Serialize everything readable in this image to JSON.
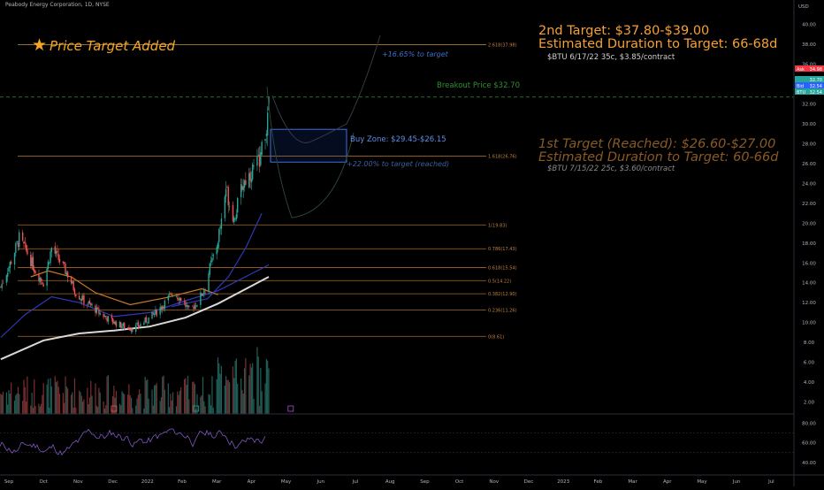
{
  "header": {
    "title": "Peabody Energy Corporation, 1D, NYSE"
  },
  "badge": {
    "icon": "star-icon",
    "text": "Price Target Added",
    "color": "#f5a623"
  },
  "notes": {
    "target2_title": "2nd Target: $37.80-$39.00",
    "target2_duration": "Estimated Duration to Target: 66-68d",
    "target2_contract": "$BTU 6/17/22 35c, $3.85/contract",
    "target1_title": "1st Target (Reached): $26.60-$27.00",
    "target1_duration": "Estimated Duration to Target: 60-66d",
    "target1_contract": "$BTU 7/15/22 25c, $3.60/contract",
    "breakout": "Breakout Price $32.70",
    "pct_to_target": "+16.65% to target",
    "pct_reached": "+22.00% to target (reached)",
    "buy_zone": "Buy Zone: $29.45-$26.15"
  },
  "chart_data": {
    "type": "candlestick",
    "currency_label": "USD",
    "x_ticks": [
      "Sep",
      "Oct",
      "Nov",
      "Dec",
      "2022",
      "Feb",
      "Mar",
      "Apr",
      "May",
      "Jun",
      "Jul",
      "Aug",
      "Sep",
      "Oct",
      "Nov",
      "Dec",
      "2023",
      "Feb",
      "Mar",
      "Apr",
      "May",
      "Jun",
      "Jul"
    ],
    "y_ticks": [
      2,
      4,
      6,
      8,
      10,
      12,
      14,
      16,
      18,
      20,
      22,
      24,
      26,
      28,
      30,
      32,
      34,
      36,
      38,
      40
    ],
    "ylim": [
      0.8,
      41.4
    ],
    "fib_levels": [
      {
        "label": "0(8.61)",
        "value": 8.61
      },
      {
        "label": "0.236(11.26)",
        "value": 11.26
      },
      {
        "label": "0.382(12.90)",
        "value": 12.9
      },
      {
        "label": "0.5(14.22)",
        "value": 14.22
      },
      {
        "label": "0.618(15.54)",
        "value": 15.54
      },
      {
        "label": "0.786(17.43)",
        "value": 17.43
      },
      {
        "label": "1(19.83)",
        "value": 19.83
      },
      {
        "label": "1.618(26.76)",
        "value": 26.76
      },
      {
        "label": "2.618(37.98)",
        "value": 37.98
      }
    ],
    "breakout_price": 32.7,
    "buy_zone": [
      26.15,
      29.45
    ],
    "price_labels": [
      {
        "tag": "Ask",
        "value": "34.98",
        "color": "#f23645"
      },
      {
        "tag": "",
        "value": "32.70",
        "color": "#26a69a"
      },
      {
        "tag": "Bid",
        "value": "32.54",
        "color": "#2962ff"
      },
      {
        "tag": "BTU",
        "value": "32.54",
        "color": "#26a69a"
      }
    ],
    "close_path": [
      [
        "2021-08-25",
        13.6
      ],
      [
        "2021-09-03",
        16.2
      ],
      [
        "2021-09-10",
        18.5
      ],
      [
        "2021-09-17",
        17.0
      ],
      [
        "2021-09-24",
        15.2
      ],
      [
        "2021-10-01",
        14.0
      ],
      [
        "2021-10-08",
        17.5
      ],
      [
        "2021-10-15",
        16.2
      ],
      [
        "2021-10-22",
        14.8
      ],
      [
        "2021-10-29",
        13.0
      ],
      [
        "2021-11-05",
        12.2
      ],
      [
        "2021-11-12",
        11.6
      ],
      [
        "2021-11-19",
        10.9
      ],
      [
        "2021-11-26",
        10.4
      ],
      [
        "2021-12-03",
        9.9
      ],
      [
        "2021-12-10",
        9.6
      ],
      [
        "2021-12-17",
        9.4
      ],
      [
        "2021-12-24",
        9.8
      ],
      [
        "2021-12-31",
        10.4
      ],
      [
        "2022-01-07",
        11.1
      ],
      [
        "2022-01-14",
        12.0
      ],
      [
        "2022-01-21",
        13.0
      ],
      [
        "2022-01-28",
        12.4
      ],
      [
        "2022-02-04",
        11.2
      ],
      [
        "2022-02-11",
        12.0
      ],
      [
        "2022-02-18",
        13.6
      ],
      [
        "2022-02-22",
        15.5
      ],
      [
        "2022-02-28",
        17.8
      ],
      [
        "2022-03-04",
        20.4
      ],
      [
        "2022-03-08",
        23.6
      ],
      [
        "2022-03-11",
        22.0
      ],
      [
        "2022-03-15",
        20.5
      ],
      [
        "2022-03-18",
        21.8
      ],
      [
        "2022-03-22",
        23.8
      ],
      [
        "2022-03-25",
        24.4
      ],
      [
        "2022-03-29",
        25.0
      ],
      [
        "2022-04-01",
        25.6
      ],
      [
        "2022-04-05",
        26.2
      ],
      [
        "2022-04-08",
        27.4
      ],
      [
        "2022-04-11",
        28.8
      ],
      [
        "2022-04-13",
        30.4
      ],
      [
        "2022-04-14",
        32.54
      ]
    ],
    "moving_averages": [
      {
        "name": "MA white",
        "color": "#d9d9d9",
        "points": [
          [
            "2021-08-25",
            6.3
          ],
          [
            "2021-10-01",
            8.2
          ],
          [
            "2021-11-01",
            8.9
          ],
          [
            "2021-12-01",
            9.2
          ],
          [
            "2022-01-01",
            9.6
          ],
          [
            "2022-02-01",
            10.5
          ],
          [
            "2022-03-01",
            11.9
          ],
          [
            "2022-04-14",
            14.6
          ]
        ]
      },
      {
        "name": "MA blue",
        "color": "#2d3ab8",
        "points": [
          [
            "2021-08-25",
            8.5
          ],
          [
            "2021-09-15",
            10.8
          ],
          [
            "2021-10-08",
            12.6
          ],
          [
            "2021-11-01",
            12.0
          ],
          [
            "2021-12-01",
            10.6
          ],
          [
            "2022-01-01",
            11.0
          ],
          [
            "2022-02-01",
            12.2
          ],
          [
            "2022-03-01",
            13.2
          ],
          [
            "2022-04-14",
            15.8
          ]
        ]
      },
      {
        "name": "MA orange",
        "color": "#c87a2a",
        "points": [
          [
            "2021-09-20",
            14.6
          ],
          [
            "2021-10-05",
            15.2
          ],
          [
            "2021-10-25",
            14.6
          ],
          [
            "2021-11-15",
            13.0
          ],
          [
            "2021-12-15",
            11.8
          ],
          [
            "2022-01-15",
            12.5
          ],
          [
            "2022-02-15",
            13.4
          ],
          [
            "2022-03-01",
            12.8
          ]
        ]
      }
    ],
    "rsi_ticks": [
      40,
      60,
      80
    ],
    "rsi_levels": [
      50,
      70
    ]
  }
}
